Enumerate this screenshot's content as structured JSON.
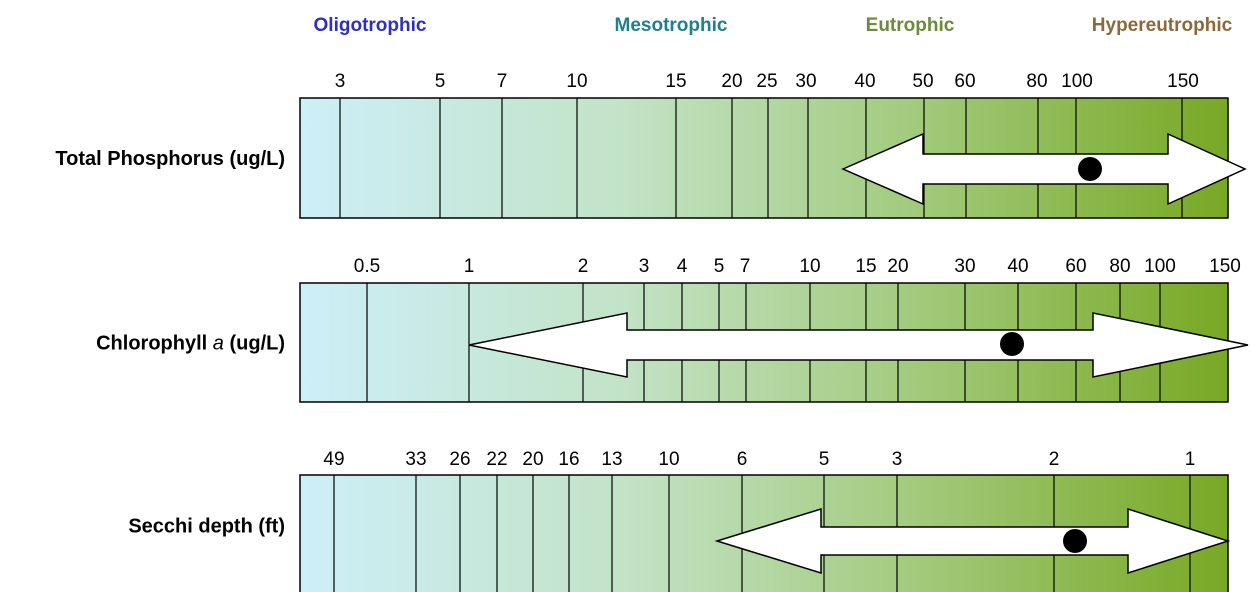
{
  "header": {
    "classes": [
      {
        "label": "Oligotrophic",
        "color": "#2f2fbf"
      },
      {
        "label": "Mesotrophic",
        "color": "#1f7f8c"
      },
      {
        "label": "Eutrophic",
        "color": "#6b8a3c"
      },
      {
        "label": "Hypereutrophic",
        "color": "#8a6a3a"
      }
    ]
  },
  "rows": [
    {
      "name": "Total Phosphorus",
      "unit": "(ug/L)",
      "ticks": [
        3,
        5,
        7,
        10,
        15,
        20,
        25,
        30,
        40,
        50,
        60,
        80,
        100,
        150
      ]
    },
    {
      "name": "Chlorophyll",
      "name_italic": "a",
      "unit": "(ug/L)",
      "ticks": [
        0.5,
        1,
        2,
        3,
        4,
        5,
        7,
        10,
        15,
        20,
        30,
        40,
        60,
        80,
        100,
        150
      ]
    },
    {
      "name": "Secchi depth",
      "unit": "(ft)",
      "ticks": [
        49,
        33,
        26,
        22,
        20,
        16,
        13,
        10,
        6,
        5,
        3,
        2,
        1
      ]
    }
  ]
}
